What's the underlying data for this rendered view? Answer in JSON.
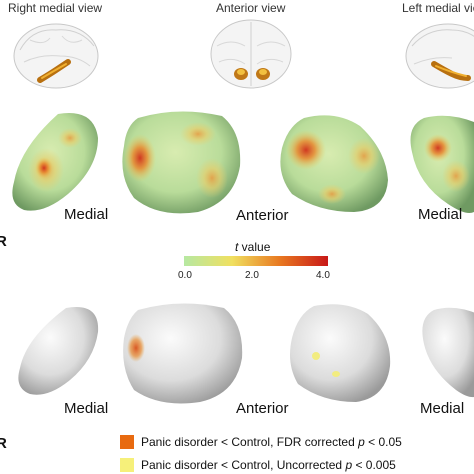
{
  "views": {
    "right_medial": "Right medial view",
    "anterior": "Anterior view",
    "left_medial": "Left medial view"
  },
  "row1_labels": {
    "medial_left": "Medial",
    "anterior": "Anterior",
    "medial_right": "Medial"
  },
  "row2_labels": {
    "medial_left": "Medial",
    "anterior": "Anterior",
    "medial_right": "Medial"
  },
  "panel_letters": {
    "row1": "R",
    "row2": "R"
  },
  "colorbar": {
    "title_var": "t",
    "title_rest": " value",
    "ticks": [
      "0.0",
      "2.0",
      "4.0"
    ],
    "colors": [
      "#b6e8a2",
      "#f0e060",
      "#e87820",
      "#c81818"
    ]
  },
  "legend": [
    {
      "text": "Panic disorder < Control, FDR corrected ",
      "p": "p",
      "tail": " < 0.05",
      "color": "#e86a10"
    },
    {
      "text": "Panic disorder < Control, Uncorrected ",
      "p": "p",
      "tail": " < 0.005",
      "color": "#f6f07a"
    }
  ]
}
